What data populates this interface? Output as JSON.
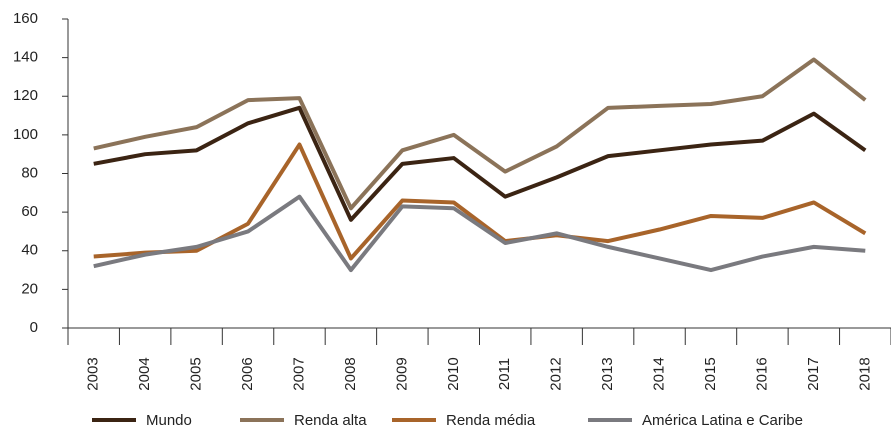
{
  "chart_data": {
    "type": "line",
    "categories": [
      "2003",
      "2004",
      "2005",
      "2006",
      "2007",
      "2008",
      "2009",
      "2010",
      "2011",
      "2012",
      "2013",
      "2014",
      "2015",
      "2016",
      "2017",
      "2018"
    ],
    "series": [
      {
        "name": "Mundo",
        "color": "#3b2413",
        "values": [
          85,
          90,
          92,
          106,
          114,
          56,
          85,
          88,
          68,
          78,
          89,
          92,
          95,
          97,
          111,
          92
        ]
      },
      {
        "name": "Renda alta",
        "color": "#8b7359",
        "values": [
          93,
          99,
          104,
          118,
          119,
          62,
          92,
          100,
          81,
          94,
          114,
          115,
          116,
          120,
          139,
          118
        ]
      },
      {
        "name": "Renda média",
        "color": "#a8642a",
        "values": [
          37,
          39,
          40,
          54,
          95,
          36,
          66,
          65,
          45,
          48,
          45,
          51,
          58,
          57,
          65,
          49
        ]
      },
      {
        "name": "América Latina e Caribe",
        "color": "#7a7a7f",
        "values": [
          32,
          38,
          42,
          50,
          68,
          30,
          63,
          62,
          44,
          49,
          42,
          36,
          30,
          37,
          42,
          40
        ]
      }
    ],
    "ylim": [
      0,
      160
    ],
    "yticks": [
      0,
      20,
      40,
      60,
      80,
      100,
      120,
      140,
      160
    ],
    "grid": false
  }
}
